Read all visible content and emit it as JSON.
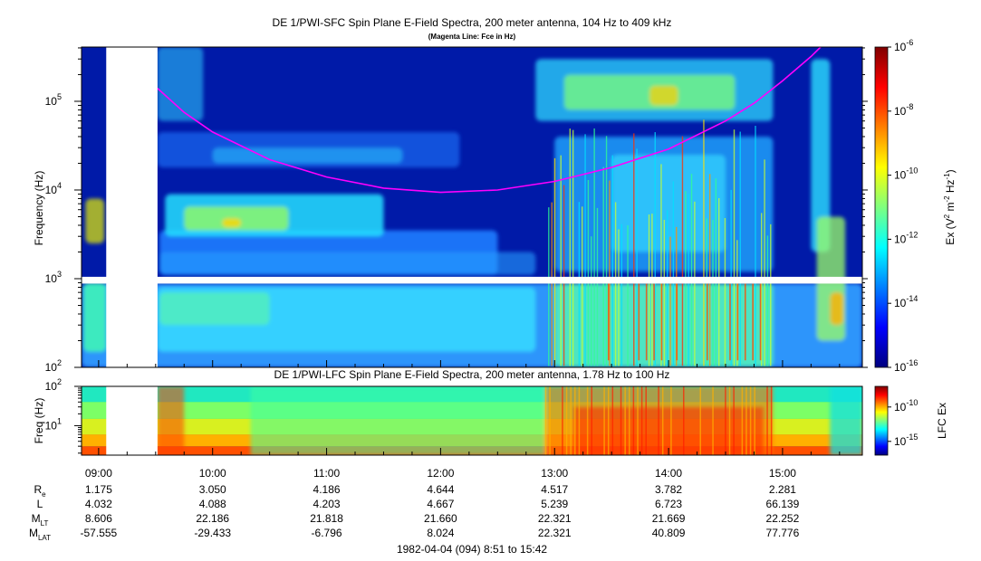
{
  "chart_data": [
    {
      "type": "heatmap",
      "title": "DE 1/PWI-SFC  Spin Plane E-Field Spectra, 200 meter antenna, 104 Hz to 409 kHz",
      "subtitle": "(Magenta Line: Fce in Hz)",
      "ylabel": "Frequency (Hz)",
      "yscale": "log",
      "ylim": [
        100,
        409000
      ],
      "y_ticks": [
        {
          "value": 100,
          "base": "10",
          "exp": "2"
        },
        {
          "value": 1000,
          "base": "10",
          "exp": "3"
        },
        {
          "value": 10000,
          "base": "10",
          "exp": "4"
        },
        {
          "value": 100000,
          "base": "10",
          "exp": "5"
        }
      ],
      "colorbar": {
        "label_pre": "Ex (V",
        "label_exp1": "2",
        "label_mid": " m",
        "label_exp2": "-2",
        "label_mid2": " Hz",
        "label_exp3": "-1",
        "label_post": ")",
        "scale": "log",
        "range": [
          1e-16,
          1e-06
        ],
        "ticks": [
          {
            "value": 1e-06,
            "base": "10",
            "exp": "-6"
          },
          {
            "value": 1e-08,
            "base": "10",
            "exp": "-8"
          },
          {
            "value": 1e-10,
            "base": "10",
            "exp": "-10"
          },
          {
            "value": 1e-12,
            "base": "10",
            "exp": "-12"
          },
          {
            "value": 1e-14,
            "base": "10",
            "exp": "-14"
          },
          {
            "value": 1e-16,
            "base": "10",
            "exp": "-16"
          }
        ]
      },
      "fce_line": {
        "color": "#ff00ff",
        "points": [
          {
            "time": "09:31",
            "freq": 140000
          },
          {
            "time": "09:45",
            "freq": 75000
          },
          {
            "time": "10:00",
            "freq": 45000
          },
          {
            "time": "10:30",
            "freq": 22000
          },
          {
            "time": "11:00",
            "freq": 14000
          },
          {
            "time": "11:30",
            "freq": 10500
          },
          {
            "time": "12:00",
            "freq": 9400
          },
          {
            "time": "12:30",
            "freq": 10000
          },
          {
            "time": "13:00",
            "freq": 12500
          },
          {
            "time": "13:30",
            "freq": 18000
          },
          {
            "time": "14:00",
            "freq": 29000
          },
          {
            "time": "14:30",
            "freq": 60000
          },
          {
            "time": "14:45",
            "freq": 95000
          },
          {
            "time": "15:00",
            "freq": 170000
          },
          {
            "time": "15:15",
            "freq": 320000
          },
          {
            "time": "15:20",
            "freq": 409000
          }
        ]
      },
      "data_gaps": [
        {
          "type": "time",
          "start": "09:04",
          "end": "09:31"
        },
        {
          "type": "freq",
          "start": 880,
          "end": 1050
        }
      ]
    },
    {
      "type": "heatmap",
      "title": "DE 1/PWI-LFC  Spin Plane E-Field Spectra, 200 meter antenna, 1.78 Hz to 100 Hz",
      "ylabel": "Freq (Hz)",
      "yscale": "log",
      "ylim": [
        1.78,
        100
      ],
      "y_ticks": [
        {
          "value": 10,
          "base": "10",
          "exp": "1"
        },
        {
          "value": 100,
          "base": "10",
          "exp": "2"
        }
      ],
      "colorbar": {
        "label": "LFC Ex",
        "scale": "log",
        "ticks": [
          {
            "value": 1e-10,
            "base": "10",
            "exp": "-10"
          },
          {
            "value": 1e-15,
            "base": "10",
            "exp": "-15"
          }
        ]
      },
      "data_gaps": [
        {
          "type": "time",
          "start": "09:04",
          "end": "09:31"
        }
      ]
    }
  ],
  "time_axis": {
    "start": "08:51",
    "end": "15:42",
    "ticks": [
      "09:00",
      "10:00",
      "11:00",
      "12:00",
      "13:00",
      "14:00",
      "15:00"
    ]
  },
  "ephemeris": [
    {
      "label": "R",
      "sub": "e",
      "values": [
        "1.175",
        "3.050",
        "4.186",
        "4.644",
        "4.517",
        "3.782",
        "2.281"
      ]
    },
    {
      "label": "L",
      "sub": "",
      "values": [
        "4.032",
        "4.088",
        "4.203",
        "4.667",
        "5.239",
        "6.723",
        "66.139"
      ]
    },
    {
      "label": "M",
      "sub": "LT",
      "values": [
        "8.606",
        "22.186",
        "21.818",
        "21.660",
        "22.321",
        "21.669",
        "22.252"
      ]
    },
    {
      "label": "M",
      "sub": "LAT",
      "values": [
        "-57.555",
        "-29.433",
        "-6.796",
        "8.024",
        "22.321",
        "40.809",
        "77.776"
      ]
    }
  ],
  "footer": "1982-04-04 (094) 8:51 to 15:42"
}
